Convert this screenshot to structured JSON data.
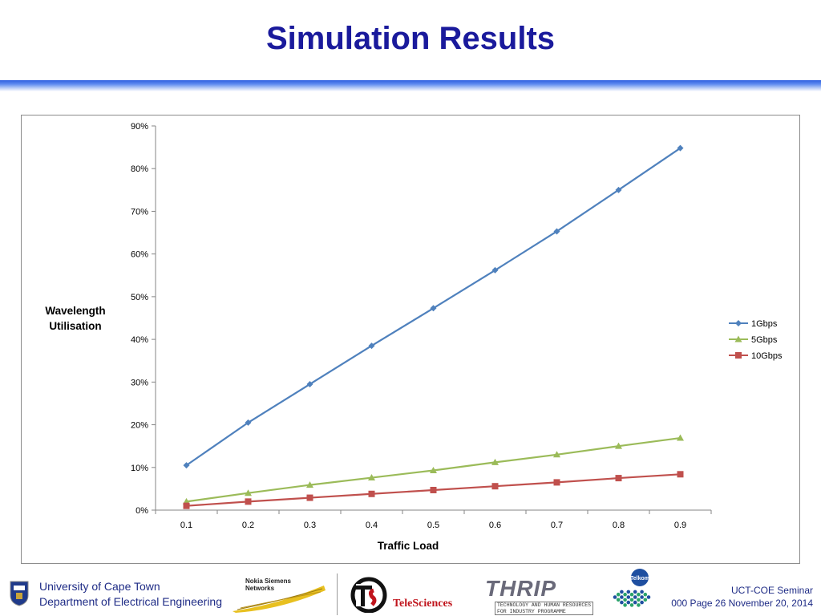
{
  "slide": {
    "title": "Simulation Results"
  },
  "chart_data": {
    "type": "line",
    "title": "",
    "xlabel": "Traffic Load",
    "ylabel_lines": [
      "Wavelength",
      "Utilisation"
    ],
    "categories": [
      "0.1",
      "0.2",
      "0.3",
      "0.4",
      "0.5",
      "0.6",
      "0.7",
      "0.8",
      "0.9"
    ],
    "y_ticks": [
      "0%",
      "10%",
      "20%",
      "30%",
      "40%",
      "50%",
      "60%",
      "70%",
      "80%",
      "90%"
    ],
    "ylim": [
      0,
      90
    ],
    "grid": false,
    "legend_position": "right",
    "series": [
      {
        "name": "1Gbps",
        "marker": "diamond",
        "color": "#4f81bd",
        "values": [
          10.5,
          20.5,
          29.5,
          38.5,
          47.3,
          56.2,
          65.3,
          75.0,
          84.8
        ]
      },
      {
        "name": "5Gbps",
        "marker": "triangle",
        "color": "#9bbb59",
        "values": [
          2.0,
          4.0,
          5.9,
          7.6,
          9.3,
          11.2,
          13.0,
          15.0,
          16.9
        ]
      },
      {
        "name": "10Gbps",
        "marker": "square",
        "color": "#c0504d",
        "values": [
          1.0,
          2.0,
          2.9,
          3.8,
          4.7,
          5.6,
          6.5,
          7.5,
          8.4
        ]
      }
    ]
  },
  "footer": {
    "university": "University of Cape Town",
    "department": "Department of Electrical Engineering",
    "nsn_line1": "Nokia Siemens",
    "nsn_line2": "Networks",
    "telesciences": "TeleSciences",
    "thrip_word": "THRIP",
    "thrip_sub1": "TECHNOLOGY AND HUMAN RESOURCES",
    "thrip_sub2": "FOR INDUSTRY PROGRAMME",
    "telkom": "Telkom",
    "seminar_line1": "UCT-COE Seminar",
    "seminar_line2": "000 Page 26 November 20, 2014"
  },
  "colors": {
    "title": "#1a1a9c",
    "footer_text": "#1f2c86"
  }
}
